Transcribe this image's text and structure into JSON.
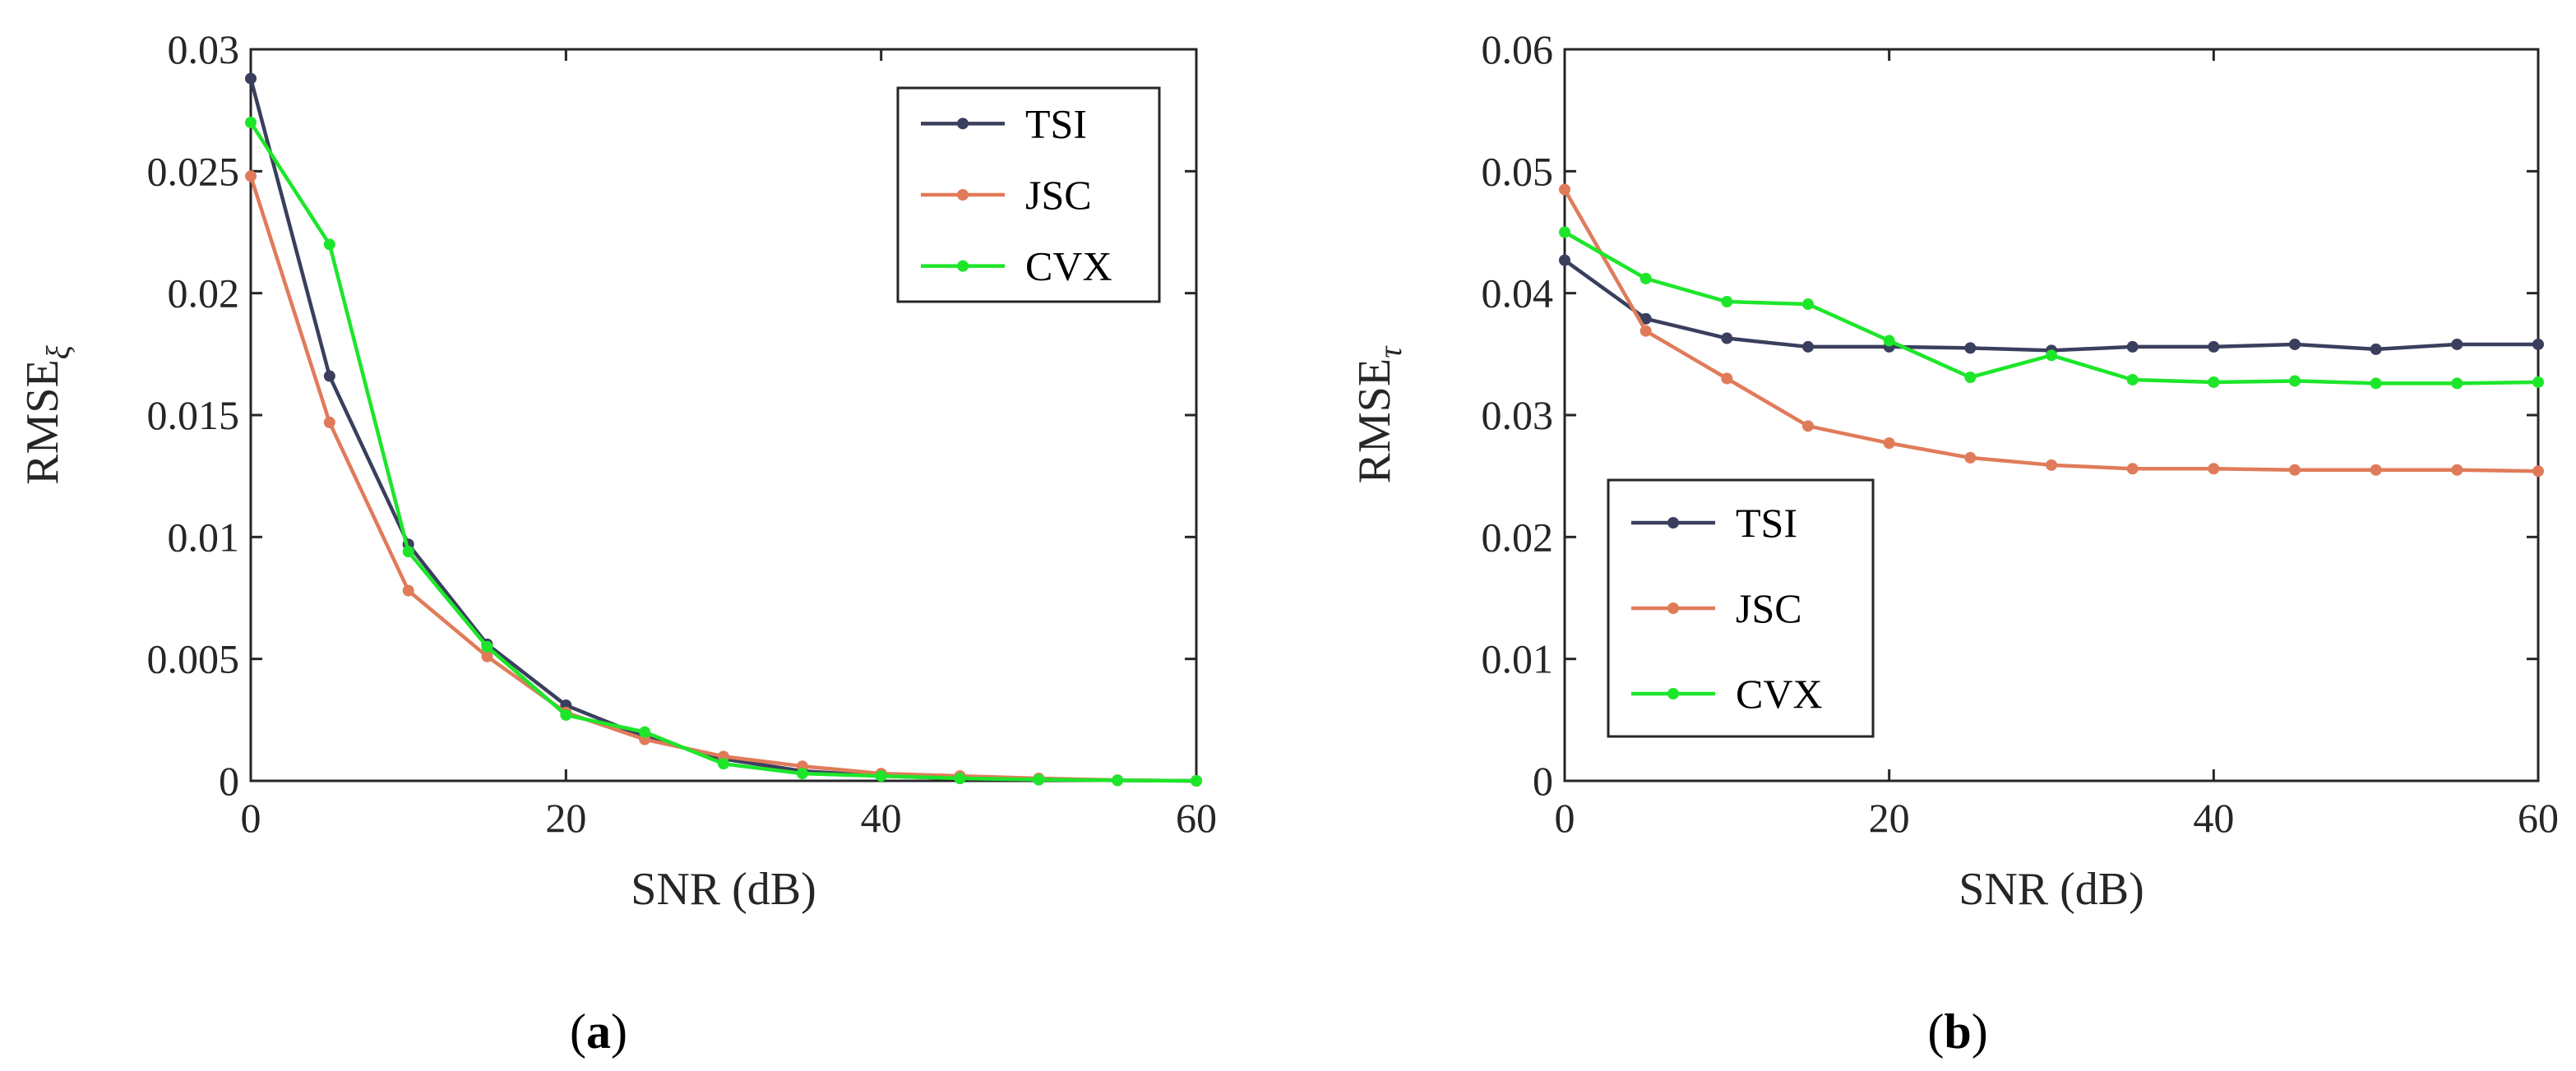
{
  "figure": {
    "panels": [
      {
        "label_open": "(",
        "label_letter": "a",
        "label_close": ")"
      },
      {
        "label_open": "(",
        "label_letter": "b",
        "label_close": ")"
      }
    ]
  },
  "chart_data": [
    {
      "type": "line",
      "xlabel": "SNR (dB)",
      "ylabel_main": "RMSE",
      "ylabel_sub": "ξ",
      "xlim": [
        0,
        60
      ],
      "ylim": [
        0,
        0.03
      ],
      "xticks": [
        0,
        20,
        40,
        60
      ],
      "xtick_labels": [
        "0",
        "20",
        "40",
        "60"
      ],
      "yticks": [
        0,
        0.005,
        0.01,
        0.015,
        0.02,
        0.025,
        0.03
      ],
      "ytick_labels": [
        "0",
        "0.005",
        "0.01",
        "0.015",
        "0.02",
        "0.025",
        "0.03"
      ],
      "legend_position": "top-right",
      "x": [
        0,
        5,
        10,
        15,
        20,
        25,
        30,
        35,
        40,
        45,
        50,
        55,
        60
      ],
      "series": [
        {
          "name": "TSI",
          "color": "#3b3f5e",
          "values": [
            0.0288,
            0.0166,
            0.0097,
            0.0056,
            0.0031,
            0.0018,
            0.0009,
            0.0004,
            0.0002,
            0.0001,
            5e-05,
            2e-05,
            0.0
          ]
        },
        {
          "name": "JSC",
          "color": "#e07b5a",
          "values": [
            0.0248,
            0.0147,
            0.0078,
            0.0051,
            0.0028,
            0.0017,
            0.001,
            0.0006,
            0.0003,
            0.0002,
            0.0001,
            3e-05,
            0.0
          ]
        },
        {
          "name": "CVX",
          "color": "#1de62a",
          "values": [
            0.027,
            0.022,
            0.0094,
            0.0055,
            0.0027,
            0.002,
            0.0007,
            0.0003,
            0.0002,
            0.0001,
            5e-05,
            2e-05,
            0.0
          ]
        }
      ]
    },
    {
      "type": "line",
      "xlabel": "SNR (dB)",
      "ylabel_main": "RMSE",
      "ylabel_sub": "τ",
      "xlim": [
        0,
        60
      ],
      "ylim": [
        0,
        0.06
      ],
      "xticks": [
        0,
        20,
        40,
        60
      ],
      "xtick_labels": [
        "0",
        "20",
        "40",
        "60"
      ],
      "yticks": [
        0,
        0.01,
        0.02,
        0.03,
        0.04,
        0.05,
        0.06
      ],
      "ytick_labels": [
        "0",
        "0.01",
        "0.02",
        "0.03",
        "0.04",
        "0.05",
        "0.06"
      ],
      "legend_position": "bottom-left",
      "x": [
        0,
        5,
        10,
        15,
        20,
        25,
        30,
        35,
        40,
        45,
        50,
        55,
        60
      ],
      "series": [
        {
          "name": "TSI",
          "color": "#3b3f5e",
          "values": [
            0.0427,
            0.0379,
            0.0363,
            0.0356,
            0.0356,
            0.0355,
            0.0353,
            0.0356,
            0.0356,
            0.0358,
            0.0354,
            0.0358,
            0.0358
          ]
        },
        {
          "name": "JSC",
          "color": "#e07b5a",
          "values": [
            0.0485,
            0.0369,
            0.033,
            0.0291,
            0.0277,
            0.0265,
            0.0259,
            0.0256,
            0.0256,
            0.0255,
            0.0255,
            0.0255,
            0.0254
          ]
        },
        {
          "name": "CVX",
          "color": "#1de62a",
          "values": [
            0.045,
            0.0412,
            0.0393,
            0.0391,
            0.0361,
            0.0331,
            0.0349,
            0.0329,
            0.0327,
            0.0328,
            0.0326,
            0.0326,
            0.0327
          ]
        }
      ]
    }
  ]
}
